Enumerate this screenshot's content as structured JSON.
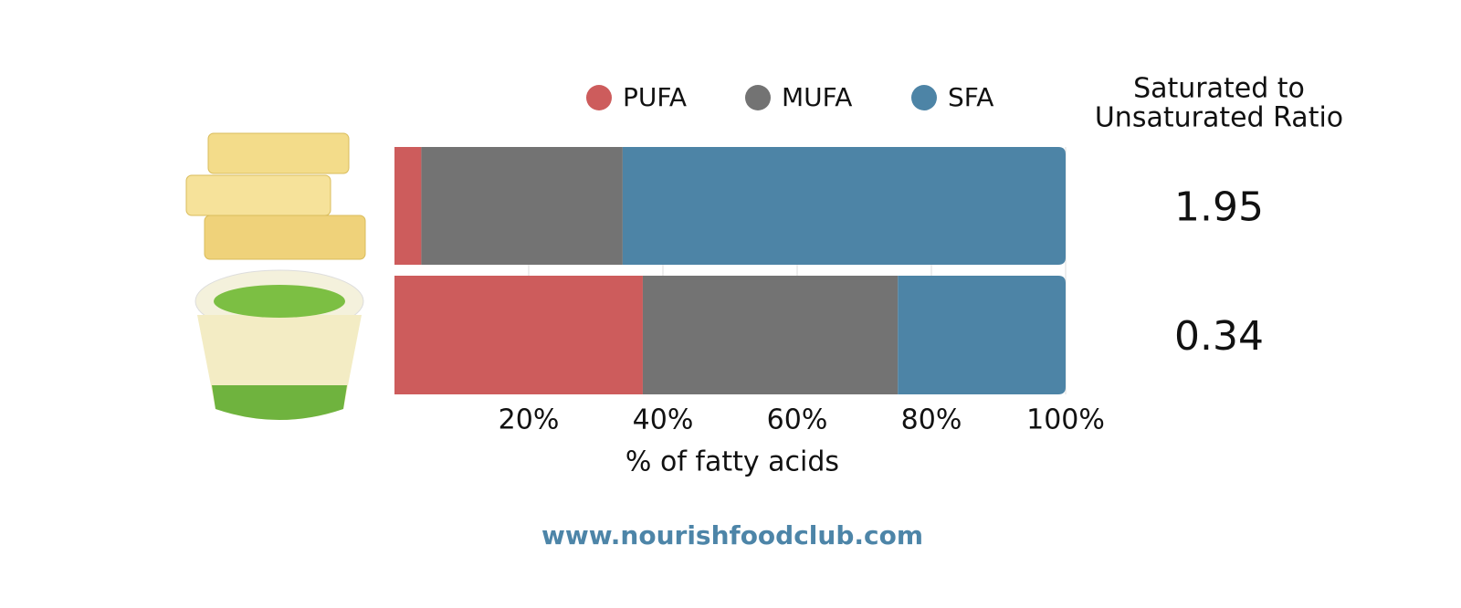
{
  "chart_data": {
    "type": "stacked-bar-horizontal",
    "categories": [
      null,
      null
    ],
    "series": [
      {
        "name": "PUFA",
        "color": "#cd5c5c",
        "values": [
          4,
          37
        ]
      },
      {
        "name": "MUFA",
        "color": "#737373",
        "values": [
          30,
          38
        ]
      },
      {
        "name": "SFA",
        "color": "#4d84a6",
        "values": [
          66,
          25
        ]
      }
    ],
    "xlim": [
      0,
      100
    ],
    "xticks": [
      {
        "value": 20,
        "label": "20%"
      },
      {
        "value": 40,
        "label": "40%"
      },
      {
        "value": 60,
        "label": "60%"
      },
      {
        "value": 80,
        "label": "80%"
      },
      {
        "value": 100,
        "label": "100%"
      }
    ],
    "xlabel": "% of fatty acids",
    "grid": true,
    "legend": "top",
    "ratio_title": [
      "Saturated to",
      "Unsaturated Ratio"
    ],
    "ratios": [
      1.95,
      0.34
    ],
    "footer": "www.nourishfoodclub.com"
  }
}
